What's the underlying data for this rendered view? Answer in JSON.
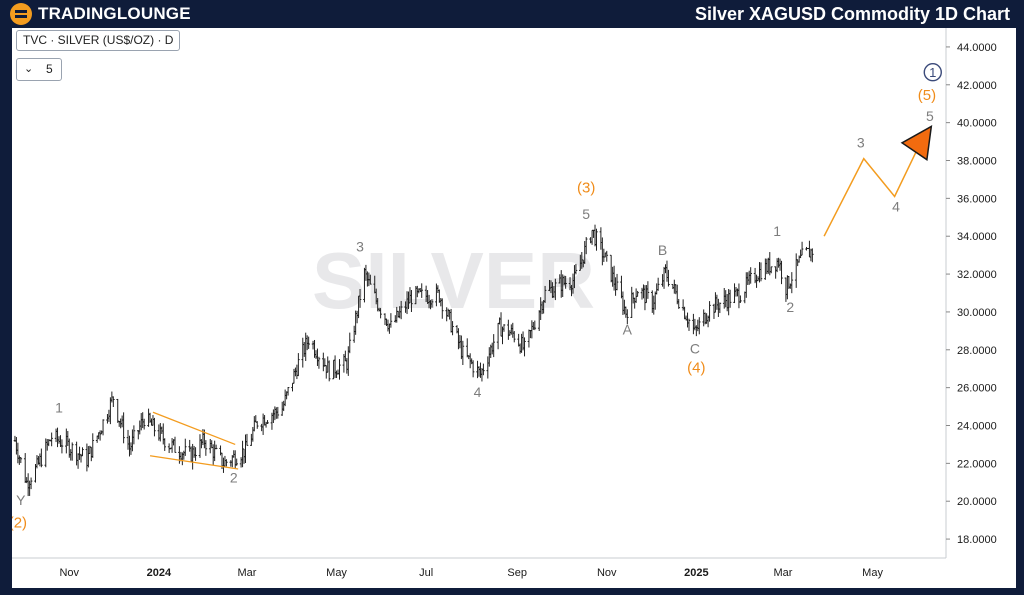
{
  "header": {
    "brand": "TRADINGLOUNGE",
    "title": "Silver XAGUSD Commodity 1D Chart"
  },
  "toolbar": {
    "symbol_label": "TVC · SILVER (US$/OZ) · D",
    "count_value": "5"
  },
  "colors": {
    "header_bg": "#0f1c3a",
    "accent": "#f39c1f",
    "candle": "#202020",
    "wave_grey": "#7d7d7d",
    "wave_orange": "#f08c1a",
    "circle_label": "#3b4a7a"
  },
  "chart_data": {
    "type": "candlestick",
    "watermark": "SILVER",
    "y_axis": {
      "ticks": [
        "44.0000",
        "42.0000",
        "40.0000",
        "38.0000",
        "36.0000",
        "34.0000",
        "32.0000",
        "30.0000",
        "28.0000",
        "26.0000",
        "24.0000",
        "22.0000",
        "20.0000",
        "18.0000"
      ],
      "ylim": [
        17,
        45
      ]
    },
    "x_axis": {
      "labels": [
        {
          "text": "Nov",
          "date": "2023-11-01",
          "bold": false
        },
        {
          "text": "2024",
          "date": "2024-01-01",
          "bold": true
        },
        {
          "text": "Mar",
          "date": "2024-03-01",
          "bold": false
        },
        {
          "text": "May",
          "date": "2024-05-01",
          "bold": false
        },
        {
          "text": "Jul",
          "date": "2024-07-01",
          "bold": false
        },
        {
          "text": "Sep",
          "date": "2024-09-01",
          "bold": false
        },
        {
          "text": "Nov",
          "date": "2024-11-01",
          "bold": false
        },
        {
          "text": "2025",
          "date": "2025-01-01",
          "bold": true
        },
        {
          "text": "Mar",
          "date": "2025-03-01",
          "bold": false
        },
        {
          "text": "May",
          "date": "2025-05-01",
          "bold": false
        }
      ],
      "xlim": [
        "2023-09-23",
        "2025-06-20"
      ]
    },
    "price_path": [
      [
        "2023-09-25",
        23.2
      ],
      [
        "2023-10-03",
        21.0
      ],
      [
        "2023-10-10",
        21.8
      ],
      [
        "2023-10-20",
        23.4
      ],
      [
        "2023-10-30",
        23.0
      ],
      [
        "2023-11-13",
        22.2
      ],
      [
        "2023-11-22",
        23.8
      ],
      [
        "2023-12-01",
        25.5
      ],
      [
        "2023-12-04",
        24.6
      ],
      [
        "2023-12-12",
        22.8
      ],
      [
        "2023-12-22",
        24.4
      ],
      [
        "2024-01-08",
        23.0
      ],
      [
        "2024-01-22",
        22.4
      ],
      [
        "2024-02-01",
        23.2
      ],
      [
        "2024-02-14",
        22.0
      ],
      [
        "2024-02-29",
        22.7
      ],
      [
        "2024-03-08",
        24.2
      ],
      [
        "2024-03-25",
        24.9
      ],
      [
        "2024-04-05",
        27.3
      ],
      [
        "2024-04-12",
        28.6
      ],
      [
        "2024-04-26",
        26.9
      ],
      [
        "2024-05-08",
        27.3
      ],
      [
        "2024-05-20",
        32.0
      ],
      [
        "2024-05-28",
        30.6
      ],
      [
        "2024-06-07",
        29.2
      ],
      [
        "2024-06-21",
        30.8
      ],
      [
        "2024-07-10",
        30.9
      ],
      [
        "2024-07-26",
        27.8
      ],
      [
        "2024-08-07",
        26.7
      ],
      [
        "2024-08-20",
        29.2
      ],
      [
        "2024-08-30",
        28.8
      ],
      [
        "2024-09-06",
        28.0
      ],
      [
        "2024-09-20",
        31.0
      ],
      [
        "2024-10-01",
        31.5
      ],
      [
        "2024-10-10",
        31.7
      ],
      [
        "2024-10-22",
        34.3
      ],
      [
        "2024-10-31",
        32.8
      ],
      [
        "2024-11-14",
        30.0
      ],
      [
        "2024-11-22",
        31.2
      ],
      [
        "2024-12-02",
        30.5
      ],
      [
        "2024-12-11",
        32.1
      ],
      [
        "2024-12-31",
        28.9
      ],
      [
        "2025-01-10",
        30.2
      ],
      [
        "2025-01-31",
        31.0
      ],
      [
        "2025-02-12",
        32.1
      ],
      [
        "2025-02-26",
        32.7
      ],
      [
        "2025-03-03",
        31.3
      ],
      [
        "2025-03-14",
        32.9
      ],
      [
        "2025-03-24",
        33.4
      ]
    ],
    "channel_lines": [
      {
        "from": [
          "2023-12-28",
          24.7
        ],
        "to": [
          "2024-02-22",
          23.0
        ]
      },
      {
        "from": [
          "2023-12-26",
          22.4
        ],
        "to": [
          "2024-02-24",
          21.7
        ]
      }
    ],
    "projection": [
      [
        "2025-03-29",
        34.0
      ],
      [
        "2025-04-25",
        38.1
      ],
      [
        "2025-05-16",
        36.1
      ],
      [
        "2025-06-03",
        39.0
      ]
    ],
    "projection_arrow": {
      "tip": [
        "2025-06-10",
        39.8
      ]
    },
    "wave_labels": [
      {
        "text": "1",
        "date": "2023-10-25",
        "price": 24.7,
        "style": "grey"
      },
      {
        "text": "Y",
        "date": "2023-09-29",
        "price": 19.8,
        "style": "grey"
      },
      {
        "text": "(2)",
        "date": "2023-09-27",
        "price": 18.6,
        "style": "orange"
      },
      {
        "text": "2",
        "date": "2024-02-21",
        "price": 21.0,
        "style": "grey"
      },
      {
        "text": "3",
        "date": "2024-05-17",
        "price": 33.2,
        "style": "grey"
      },
      {
        "text": "4",
        "date": "2024-08-05",
        "price": 25.5,
        "style": "grey"
      },
      {
        "text": "(3)",
        "date": "2024-10-18",
        "price": 36.3,
        "style": "orange"
      },
      {
        "text": "5",
        "date": "2024-10-18",
        "price": 34.9,
        "style": "grey"
      },
      {
        "text": "A",
        "date": "2024-11-15",
        "price": 28.8,
        "style": "grey"
      },
      {
        "text": "B",
        "date": "2024-12-09",
        "price": 33.0,
        "style": "grey"
      },
      {
        "text": "C",
        "date": "2024-12-31",
        "price": 27.8,
        "style": "grey"
      },
      {
        "text": "(4)",
        "date": "2025-01-01",
        "price": 26.8,
        "style": "orange"
      },
      {
        "text": "1",
        "date": "2025-02-25",
        "price": 34.0,
        "style": "grey"
      },
      {
        "text": "2",
        "date": "2025-03-06",
        "price": 30.0,
        "style": "grey"
      },
      {
        "text": "3",
        "date": "2025-04-23",
        "price": 38.7,
        "style": "grey"
      },
      {
        "text": "4",
        "date": "2025-05-17",
        "price": 35.3,
        "style": "grey"
      },
      {
        "text": "5",
        "date": "2025-06-09",
        "price": 40.1,
        "style": "grey"
      },
      {
        "text": "(5)",
        "date": "2025-06-07",
        "price": 41.2,
        "style": "orange"
      },
      {
        "text": "1",
        "date": "2025-06-11",
        "price": 42.4,
        "style": "circle"
      }
    ]
  }
}
